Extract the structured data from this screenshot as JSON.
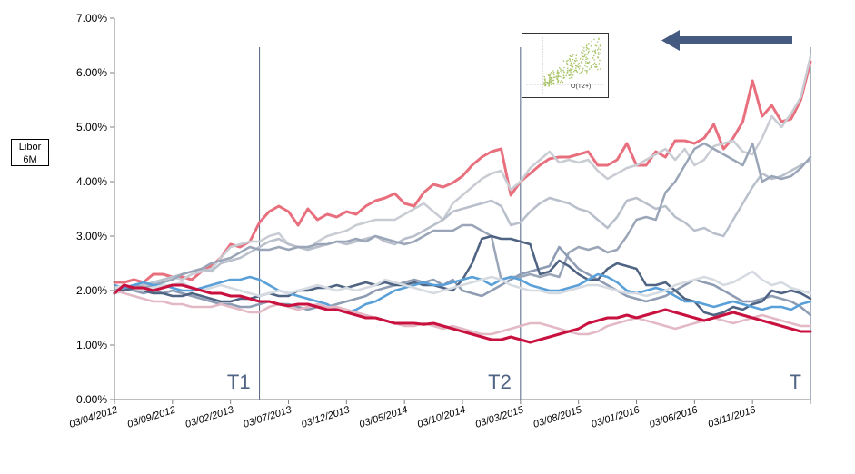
{
  "chart_data": {
    "type": "line",
    "ylabel": "Libor 6M",
    "ylabel_lines": [
      "Libor",
      "6M"
    ],
    "ylim": [
      0,
      7
    ],
    "y_ticks": [
      "0.00%",
      "1.00%",
      "2.00%",
      "3.00%",
      "4.00%",
      "5.00%",
      "6.00%",
      "7.00%"
    ],
    "x_ticks": [
      "03/04/2012",
      "03/09/2012",
      "03/02/2013",
      "03/07/2013",
      "03/12/2013",
      "03/05/2014",
      "03/10/2014",
      "03/03/2015",
      "03/08/2015",
      "03/01/2016",
      "03/06/2016",
      "03/11/2016"
    ],
    "x_count": 73,
    "vlines": [
      {
        "label": "T1",
        "x": 15
      },
      {
        "label": "T2",
        "x": 42
      },
      {
        "label": "T",
        "x": 72
      }
    ],
    "inset_label": "O(T2+)",
    "series": [
      {
        "color": "#e8707e",
        "width": 3,
        "values": [
          2.15,
          2.15,
          2.2,
          2.15,
          2.3,
          2.3,
          2.25,
          2.25,
          2.2,
          2.35,
          2.45,
          2.6,
          2.85,
          2.8,
          2.9,
          3.25,
          3.45,
          3.55,
          3.45,
          3.2,
          3.5,
          3.3,
          3.4,
          3.35,
          3.45,
          3.4,
          3.55,
          3.65,
          3.7,
          3.78,
          3.6,
          3.55,
          3.8,
          3.95,
          3.9,
          3.98,
          4.1,
          4.3,
          4.45,
          4.55,
          4.6,
          3.75,
          4.0,
          4.15,
          4.3,
          4.42,
          4.45,
          4.45,
          4.5,
          4.55,
          4.3,
          4.3,
          4.4,
          4.7,
          4.3,
          4.3,
          4.55,
          4.45,
          4.75,
          4.75,
          4.7,
          4.8,
          5.05,
          4.6,
          4.8,
          5.1,
          5.85,
          5.2,
          5.4,
          5.1,
          5.15,
          5.5,
          6.2
        ]
      },
      {
        "color": "#c9cdd3",
        "width": 2.5,
        "values": [
          2.0,
          2.05,
          2.1,
          2.1,
          2.15,
          2.2,
          2.25,
          2.2,
          2.3,
          2.35,
          2.4,
          2.6,
          2.8,
          2.85,
          2.9,
          2.9,
          3.0,
          3.05,
          2.85,
          2.8,
          2.75,
          2.9,
          3.0,
          3.05,
          3.1,
          3.2,
          3.25,
          3.3,
          3.3,
          3.3,
          3.4,
          3.5,
          3.6,
          3.45,
          3.3,
          3.6,
          3.75,
          3.9,
          4.05,
          4.15,
          4.2,
          3.85,
          4.0,
          4.25,
          4.4,
          4.55,
          4.35,
          4.4,
          4.35,
          4.4,
          4.2,
          4.05,
          4.15,
          4.25,
          4.3,
          4.4,
          4.5,
          4.6,
          4.4,
          4.6,
          4.3,
          4.4,
          4.65,
          4.7,
          4.75,
          4.55,
          4.5,
          4.8,
          5.2,
          5.0,
          5.25,
          5.55,
          6.3
        ]
      },
      {
        "color": "#b9c0cb",
        "width": 2.5,
        "values": [
          1.95,
          2.0,
          2.05,
          2.1,
          2.15,
          2.2,
          2.25,
          2.3,
          2.35,
          2.4,
          2.35,
          2.5,
          2.55,
          2.6,
          2.7,
          2.8,
          2.9,
          2.95,
          2.85,
          2.8,
          2.75,
          2.8,
          2.85,
          2.9,
          2.85,
          2.9,
          2.95,
          3.0,
          2.9,
          2.85,
          2.95,
          3.0,
          3.1,
          3.2,
          3.3,
          3.45,
          3.5,
          3.55,
          3.6,
          3.65,
          3.55,
          3.2,
          3.25,
          3.45,
          3.6,
          3.7,
          3.65,
          3.6,
          3.5,
          3.45,
          3.3,
          3.15,
          3.35,
          3.65,
          3.7,
          3.6,
          3.5,
          3.55,
          3.35,
          3.25,
          3.1,
          3.15,
          3.05,
          3.0,
          3.3,
          3.6,
          3.9,
          4.15,
          4.05,
          4.1,
          4.2,
          4.3,
          4.4
        ]
      },
      {
        "color": "#9aa6b8",
        "width": 2.5,
        "values": [
          2.0,
          2.05,
          2.1,
          2.05,
          2.1,
          2.15,
          2.2,
          2.3,
          2.35,
          2.4,
          2.5,
          2.55,
          2.6,
          2.7,
          2.8,
          2.75,
          2.75,
          2.8,
          2.75,
          2.8,
          2.8,
          2.85,
          2.85,
          2.9,
          2.9,
          2.95,
          2.9,
          3.0,
          2.95,
          2.9,
          2.85,
          2.9,
          3.0,
          3.1,
          3.1,
          3.1,
          3.2,
          3.2,
          3.1,
          3.0,
          2.2,
          2.25,
          2.25,
          2.3,
          2.25,
          2.3,
          2.25,
          2.7,
          2.8,
          2.75,
          2.8,
          2.7,
          2.75,
          3.0,
          3.3,
          3.35,
          3.3,
          3.8,
          4.0,
          4.3,
          4.6,
          4.7,
          4.6,
          4.5,
          4.4,
          4.3,
          4.7,
          4.0,
          4.1,
          4.05,
          4.1,
          4.25,
          4.45
        ]
      },
      {
        "color": "#8e9db3",
        "width": 2.5,
        "values": [
          2.0,
          2.05,
          2.0,
          1.95,
          2.0,
          1.95,
          2.0,
          1.95,
          1.9,
          1.85,
          1.8,
          1.75,
          1.75,
          1.7,
          1.7,
          1.75,
          1.8,
          1.75,
          1.75,
          1.7,
          1.65,
          1.7,
          1.7,
          1.75,
          1.8,
          1.85,
          1.9,
          2.0,
          2.05,
          2.1,
          2.15,
          2.2,
          2.15,
          2.2,
          2.1,
          2.2,
          2.0,
          1.95,
          1.9,
          2.0,
          2.1,
          2.2,
          2.3,
          2.35,
          2.4,
          2.45,
          2.8,
          2.6,
          2.4,
          2.3,
          2.2,
          2.1,
          2.0,
          1.9,
          1.85,
          1.8,
          1.85,
          1.9,
          2.0,
          2.1,
          2.2,
          2.15,
          2.1,
          2.0,
          1.9,
          1.8,
          1.8,
          1.85,
          1.9,
          1.85,
          1.8,
          1.7,
          1.55
        ]
      },
      {
        "color": "#4f6383",
        "width": 2.5,
        "values": [
          2.0,
          2.0,
          2.05,
          2.0,
          1.95,
          1.95,
          1.9,
          1.9,
          1.95,
          1.9,
          1.85,
          1.8,
          1.8,
          1.85,
          1.85,
          1.9,
          1.95,
          1.9,
          1.9,
          2.0,
          2.0,
          2.05,
          2.05,
          2.1,
          2.05,
          2.1,
          2.15,
          2.1,
          2.15,
          2.1,
          2.1,
          2.15,
          2.1,
          2.1,
          2.05,
          2.0,
          2.2,
          2.5,
          2.95,
          3.0,
          2.95,
          2.95,
          2.9,
          2.85,
          2.3,
          2.35,
          2.55,
          2.45,
          2.3,
          2.2,
          2.2,
          2.4,
          2.5,
          2.45,
          2.4,
          2.1,
          2.1,
          2.15,
          2.0,
          1.85,
          1.8,
          1.6,
          1.55,
          1.6,
          1.7,
          1.65,
          1.75,
          1.8,
          2.0,
          1.95,
          2.0,
          1.95,
          1.85
        ]
      },
      {
        "color": "#5aa0d8",
        "width": 2.5,
        "values": [
          2.1,
          2.05,
          2.1,
          2.15,
          2.1,
          2.1,
          2.05,
          2.0,
          2.0,
          2.05,
          2.1,
          2.15,
          2.2,
          2.2,
          2.25,
          2.2,
          2.1,
          2.0,
          1.95,
          1.9,
          1.85,
          1.8,
          1.75,
          1.65,
          1.6,
          1.65,
          1.75,
          1.8,
          1.9,
          2.0,
          2.05,
          2.1,
          2.15,
          2.1,
          2.1,
          2.15,
          2.2,
          2.25,
          2.2,
          2.1,
          2.2,
          2.25,
          2.2,
          2.1,
          2.05,
          2.0,
          2.0,
          2.05,
          2.1,
          2.2,
          2.3,
          2.25,
          2.15,
          2.0,
          1.95,
          2.0,
          2.05,
          2.0,
          1.9,
          1.8,
          1.8,
          1.75,
          1.7,
          1.75,
          1.8,
          1.75,
          1.7,
          1.65,
          1.7,
          1.7,
          1.65,
          1.75,
          1.8
        ]
      },
      {
        "color": "#d6dbe2",
        "width": 2.5,
        "values": [
          2.05,
          2.1,
          2.05,
          2.0,
          2.05,
          2.1,
          2.1,
          2.15,
          2.05,
          2.0,
          2.05,
          2.1,
          2.05,
          2.0,
          1.95,
          1.9,
          1.95,
          2.0,
          1.95,
          2.0,
          2.05,
          2.1,
          2.05,
          2.0,
          2.05,
          2.0,
          2.05,
          2.1,
          2.2,
          2.15,
          2.1,
          2.05,
          2.0,
          1.95,
          2.0,
          2.05,
          2.1,
          2.15,
          2.2,
          2.25,
          2.2,
          2.1,
          2.05,
          2.0,
          2.0,
          1.95,
          1.95,
          2.0,
          2.05,
          2.1,
          2.1,
          2.05,
          2.0,
          1.95,
          1.95,
          1.9,
          1.95,
          2.0,
          2.1,
          2.15,
          2.2,
          2.25,
          2.2,
          2.1,
          2.15,
          2.25,
          2.35,
          2.2,
          2.1,
          2.15,
          2.05,
          2.0,
          1.95
        ]
      },
      {
        "color": "#e2b9c4",
        "width": 2.5,
        "values": [
          2.0,
          1.95,
          1.9,
          1.85,
          1.8,
          1.8,
          1.75,
          1.75,
          1.7,
          1.7,
          1.7,
          1.75,
          1.7,
          1.65,
          1.6,
          1.6,
          1.7,
          1.75,
          1.7,
          1.65,
          1.7,
          1.75,
          1.7,
          1.7,
          1.65,
          1.6,
          1.55,
          1.5,
          1.45,
          1.4,
          1.35,
          1.35,
          1.4,
          1.35,
          1.3,
          1.35,
          1.3,
          1.25,
          1.2,
          1.2,
          1.25,
          1.3,
          1.35,
          1.4,
          1.4,
          1.35,
          1.3,
          1.25,
          1.2,
          1.2,
          1.25,
          1.35,
          1.4,
          1.45,
          1.5,
          1.45,
          1.4,
          1.35,
          1.3,
          1.35,
          1.4,
          1.45,
          1.5,
          1.45,
          1.4,
          1.45,
          1.5,
          1.55,
          1.5,
          1.45,
          1.4,
          1.35,
          1.35
        ]
      },
      {
        "color": "#c8113f",
        "width": 3,
        "values": [
          1.95,
          2.1,
          2.05,
          2.05,
          2.0,
          2.05,
          2.1,
          2.1,
          2.05,
          2.0,
          1.95,
          1.95,
          1.9,
          1.9,
          1.85,
          1.8,
          1.8,
          1.75,
          1.72,
          1.75,
          1.75,
          1.7,
          1.65,
          1.65,
          1.6,
          1.55,
          1.5,
          1.5,
          1.45,
          1.4,
          1.4,
          1.4,
          1.38,
          1.4,
          1.35,
          1.3,
          1.25,
          1.2,
          1.15,
          1.1,
          1.1,
          1.15,
          1.1,
          1.05,
          1.1,
          1.15,
          1.2,
          1.25,
          1.3,
          1.4,
          1.45,
          1.5,
          1.5,
          1.55,
          1.5,
          1.55,
          1.6,
          1.65,
          1.6,
          1.55,
          1.5,
          1.45,
          1.5,
          1.55,
          1.6,
          1.55,
          1.5,
          1.45,
          1.4,
          1.35,
          1.3,
          1.25,
          1.25
        ]
      }
    ]
  }
}
